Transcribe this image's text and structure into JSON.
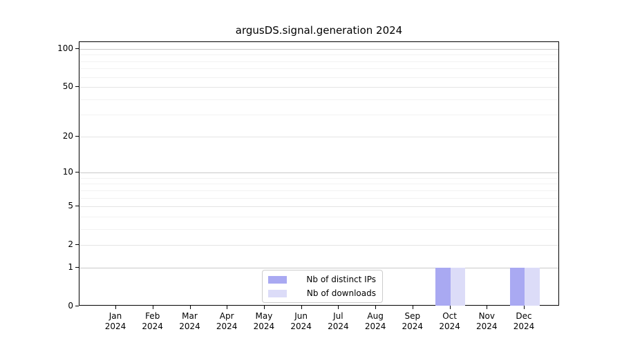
{
  "chart_data": {
    "type": "bar",
    "title": "argusDS.signal.generation 2024",
    "categories": [
      "Jan 2024",
      "Feb 2024",
      "Mar 2024",
      "Apr 2024",
      "May 2024",
      "Jun 2024",
      "Jul 2024",
      "Aug 2024",
      "Sep 2024",
      "Oct 2024",
      "Nov 2024",
      "Dec 2024"
    ],
    "series": [
      {
        "name": "Nb of distinct IPs",
        "color": "#a9a9f2",
        "values": [
          0,
          0,
          0,
          0,
          0,
          0,
          0,
          0,
          0,
          1,
          0,
          1
        ]
      },
      {
        "name": "Nb of downloads",
        "color": "#dcdcf8",
        "values": [
          0,
          0,
          0,
          0,
          0,
          0,
          0,
          0,
          0,
          1,
          0,
          1
        ]
      }
    ],
    "xlabel": "",
    "ylabel": "",
    "y_axis": {
      "scale": "log1p",
      "ticks": [
        0,
        1,
        2,
        5,
        10,
        20,
        50,
        100
      ],
      "minor_gridlines": [
        3,
        4,
        6,
        7,
        8,
        9,
        30,
        40,
        60,
        70,
        80,
        90
      ],
      "ylim": [
        0,
        113
      ]
    },
    "grid": true,
    "legend_position": "lower center"
  }
}
